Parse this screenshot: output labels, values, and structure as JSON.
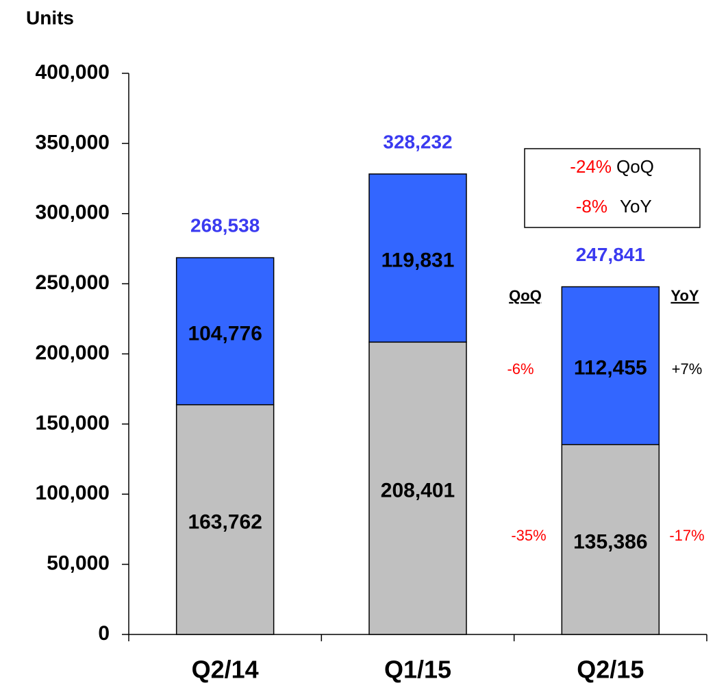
{
  "chart_data": {
    "type": "stacked_bar",
    "y_label": "Units",
    "categories": [
      "Q2/14",
      "Q1/15",
      "Q2/15"
    ],
    "series": [
      {
        "color": "#c0c0c0",
        "values": [
          163762,
          208401,
          135386
        ],
        "value_labels": [
          "163,762",
          "208,401",
          "135,386"
        ]
      },
      {
        "color": "#3366ff",
        "values": [
          104776,
          119831,
          112455
        ],
        "value_labels": [
          "104,776",
          "119,831",
          "112,455"
        ]
      }
    ],
    "totals": {
      "color": "#3a3af0",
      "values": [
        268538,
        328232,
        247841
      ],
      "value_labels": [
        "268,538",
        "328,232",
        "247,841"
      ]
    },
    "ylim": [
      0,
      400000
    ],
    "yticks": [
      0,
      {
        "value": 50000,
        "label": "50,000"
      },
      {
        "value": 100000,
        "label": "100,000"
      },
      {
        "value": 150000,
        "label": "150,000"
      },
      {
        "value": 200000,
        "label": "200,000"
      },
      {
        "value": 250000,
        "label": "250,000"
      },
      {
        "value": 300000,
        "label": "300,000"
      },
      {
        "value": 350000,
        "label": "350,000"
      },
      {
        "value": 400000,
        "label": "400,000"
      }
    ],
    "annotations": {
      "box_qoq_value": "-24%",
      "box_qoq_label": "QoQ",
      "box_yoy_value": "-8%",
      "box_yoy_label": "YoY",
      "col_qoq": "QoQ",
      "col_yoy": "YoY",
      "upper_qoq": "-6%",
      "upper_yoy": "+7%",
      "lower_qoq": "-35%",
      "lower_yoy": "-17%"
    }
  }
}
